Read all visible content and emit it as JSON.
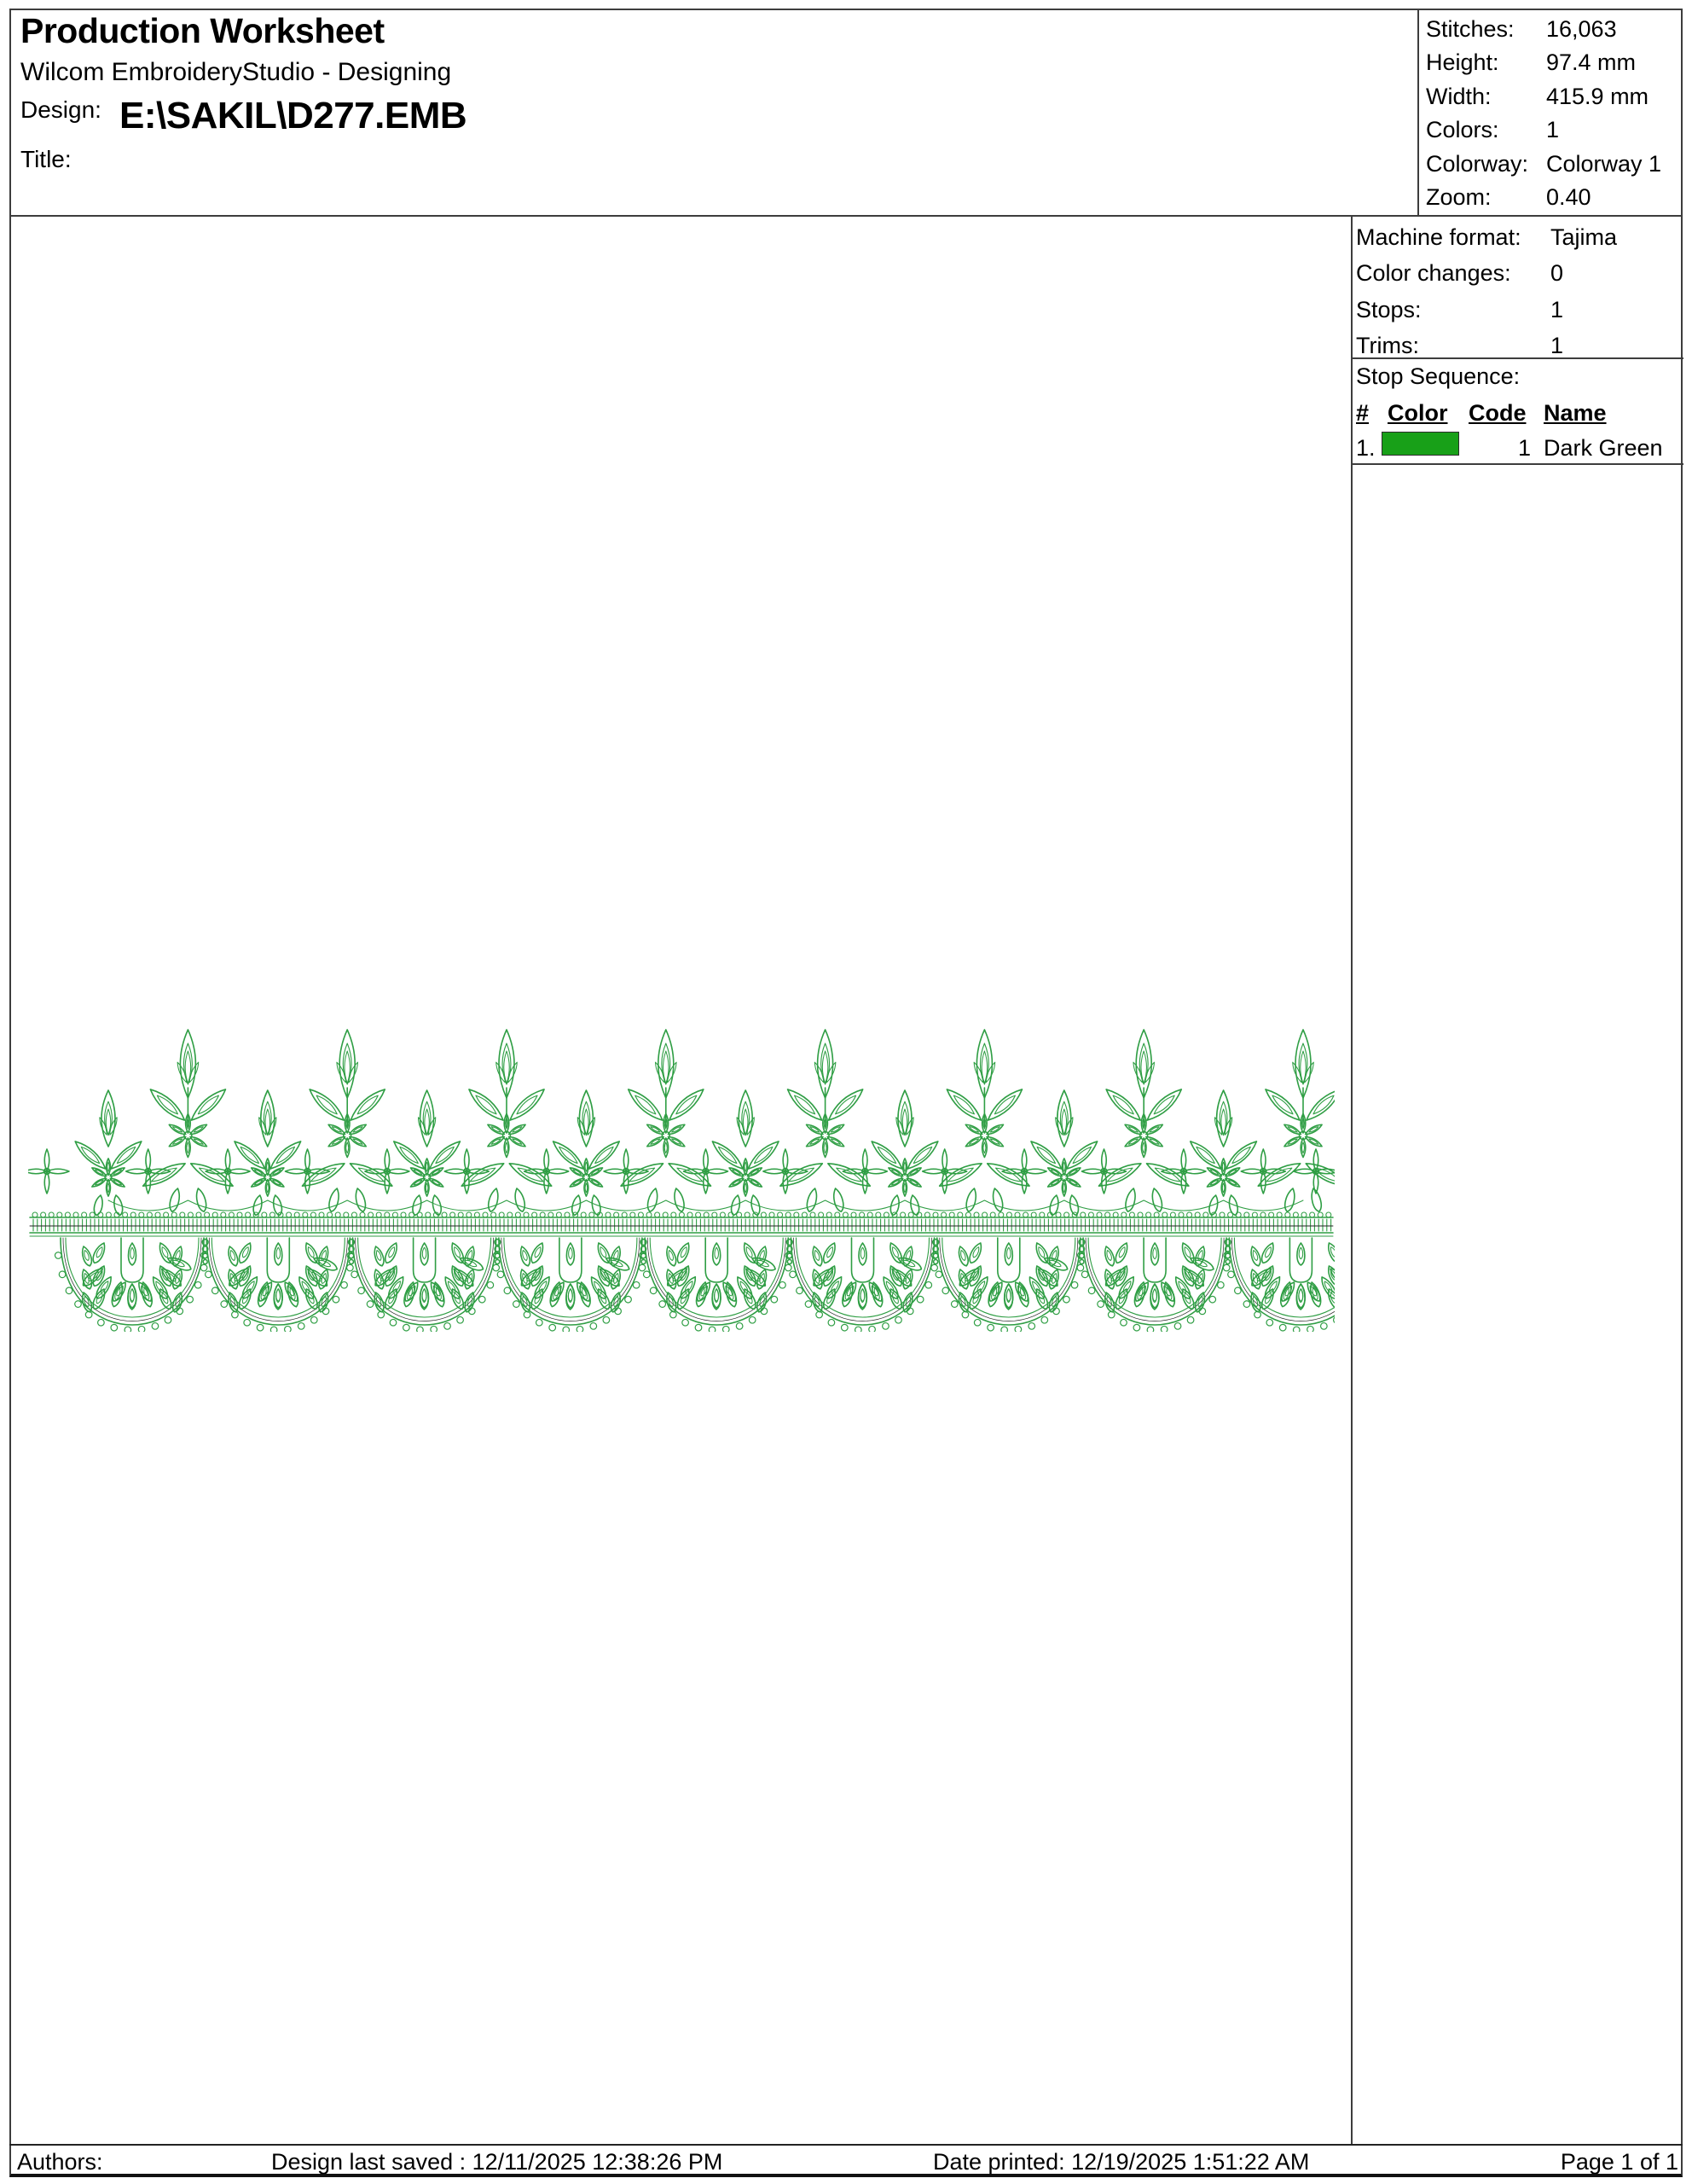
{
  "header": {
    "title": "Production Worksheet",
    "app_name": "Wilcom EmbroideryStudio - Designing",
    "design_label": "Design:",
    "design_path": "E:\\SAKIL\\D277.EMB",
    "title_label": "Title:"
  },
  "stats": {
    "rows": [
      {
        "label": "Stitches:",
        "value": "16,063"
      },
      {
        "label": "Height:",
        "value": "97.4 mm"
      },
      {
        "label": "Width:",
        "value": "415.9 mm"
      },
      {
        "label": "Colors:",
        "value": "1"
      },
      {
        "label": "Colorway:",
        "value": "Colorway 1"
      },
      {
        "label": "Zoom:",
        "value": "0.40"
      }
    ]
  },
  "machine": {
    "rows": [
      {
        "label": "Machine format:",
        "value": "Tajima"
      },
      {
        "label": "Color changes:",
        "value": "0"
      },
      {
        "label": "Stops:",
        "value": "1"
      },
      {
        "label": "Trims:",
        "value": "1"
      }
    ]
  },
  "stop_sequence": {
    "title": "Stop Sequence:",
    "columns": [
      "#",
      "Color",
      "Code",
      "Name"
    ],
    "rows": [
      {
        "num": "1.",
        "swatch_color": "#18a018",
        "code": "1",
        "name": "Dark Green"
      }
    ]
  },
  "design_preview": {
    "stitch_color": "#2f9e44",
    "accent_color": "#222222",
    "tall_motifs": 8,
    "short_motifs": 8,
    "scallops": 9
  },
  "footer": {
    "authors_label": "Authors:",
    "last_saved": "Design last saved : 12/11/2025 12:38:26 PM",
    "date_printed": "Date printed: 12/19/2025 1:51:22 AM",
    "page": "Page 1 of 1"
  }
}
